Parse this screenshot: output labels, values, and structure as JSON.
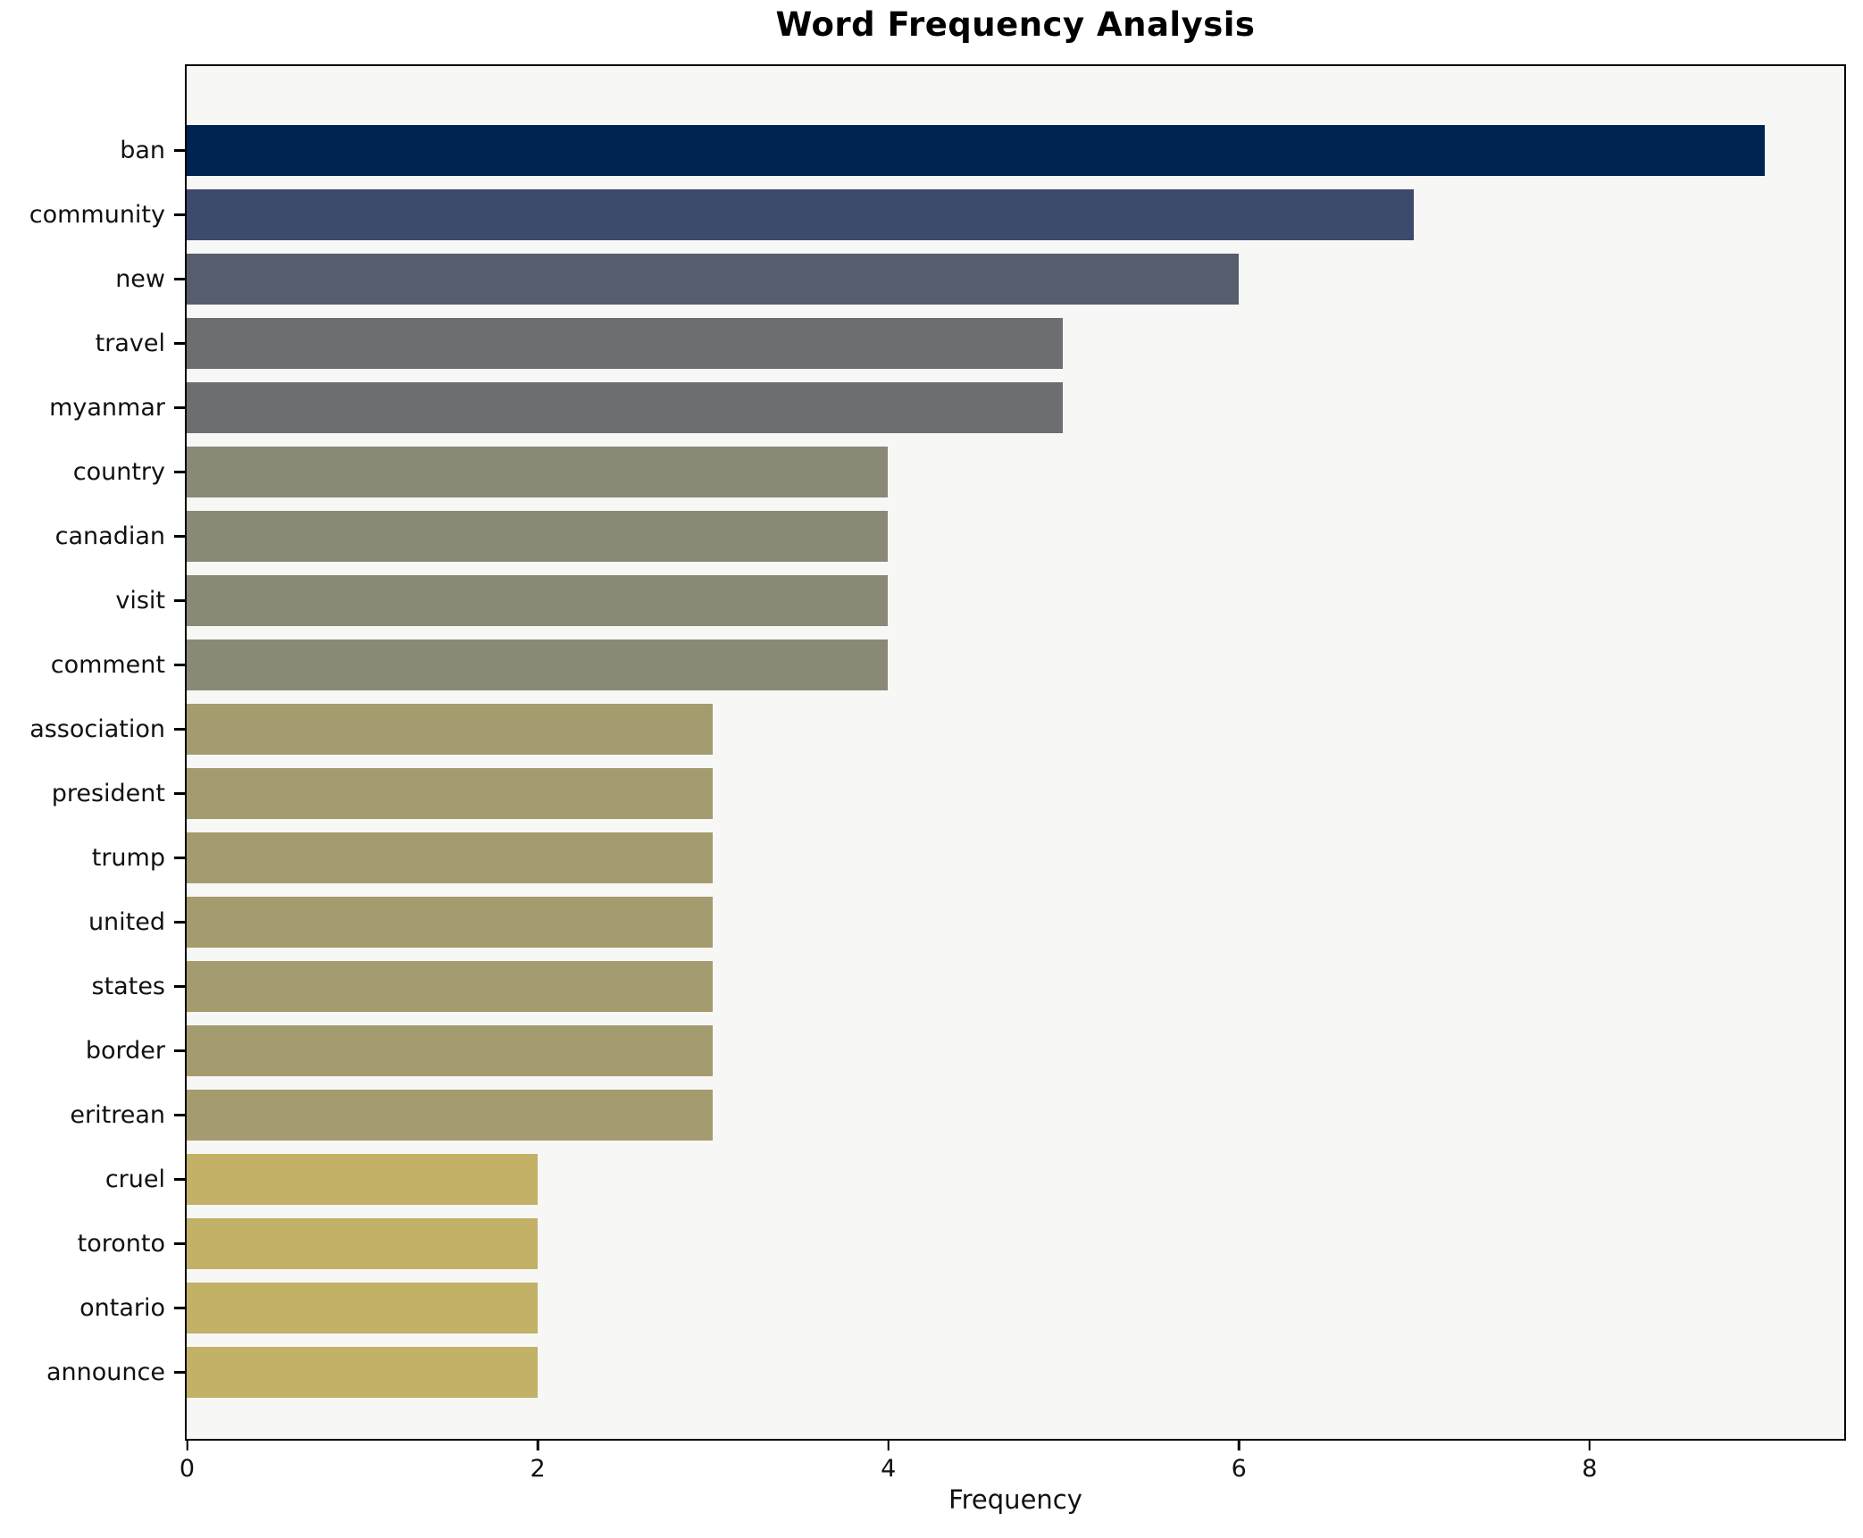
{
  "chart_data": {
    "type": "bar",
    "orientation": "horizontal",
    "title": "Word Frequency Analysis",
    "xlabel": "Frequency",
    "ylabel": "",
    "categories": [
      "ban",
      "community",
      "new",
      "travel",
      "myanmar",
      "country",
      "canadian",
      "visit",
      "comment",
      "association",
      "president",
      "trump",
      "united",
      "states",
      "border",
      "eritrean",
      "cruel",
      "toronto",
      "ontario",
      "announce"
    ],
    "values": [
      9,
      7,
      6,
      5,
      5,
      4,
      4,
      4,
      4,
      3,
      3,
      3,
      3,
      3,
      3,
      3,
      2,
      2,
      2,
      2
    ],
    "bar_colors": [
      "#002451",
      "#3d4a6c",
      "#565d6c",
      "#6d6e70",
      "#6d6e70",
      "#8a8977",
      "#8a8977",
      "#8a8977",
      "#8a8977",
      "#a49b6e",
      "#a49b6e",
      "#a49b6e",
      "#a49b6e",
      "#a49b6e",
      "#a49b6e",
      "#a49b6e",
      "#c2b166",
      "#c2b166",
      "#c2b166",
      "#c2b166"
    ],
    "xlim": [
      0,
      9.45
    ],
    "xticks": [
      0,
      2,
      4,
      6,
      8
    ],
    "grid": false,
    "legend": null,
    "colormap": "cividis",
    "plot_bg": "#f7f7f6",
    "figure_bg": "#ffffff",
    "spine_color": "#000000"
  }
}
